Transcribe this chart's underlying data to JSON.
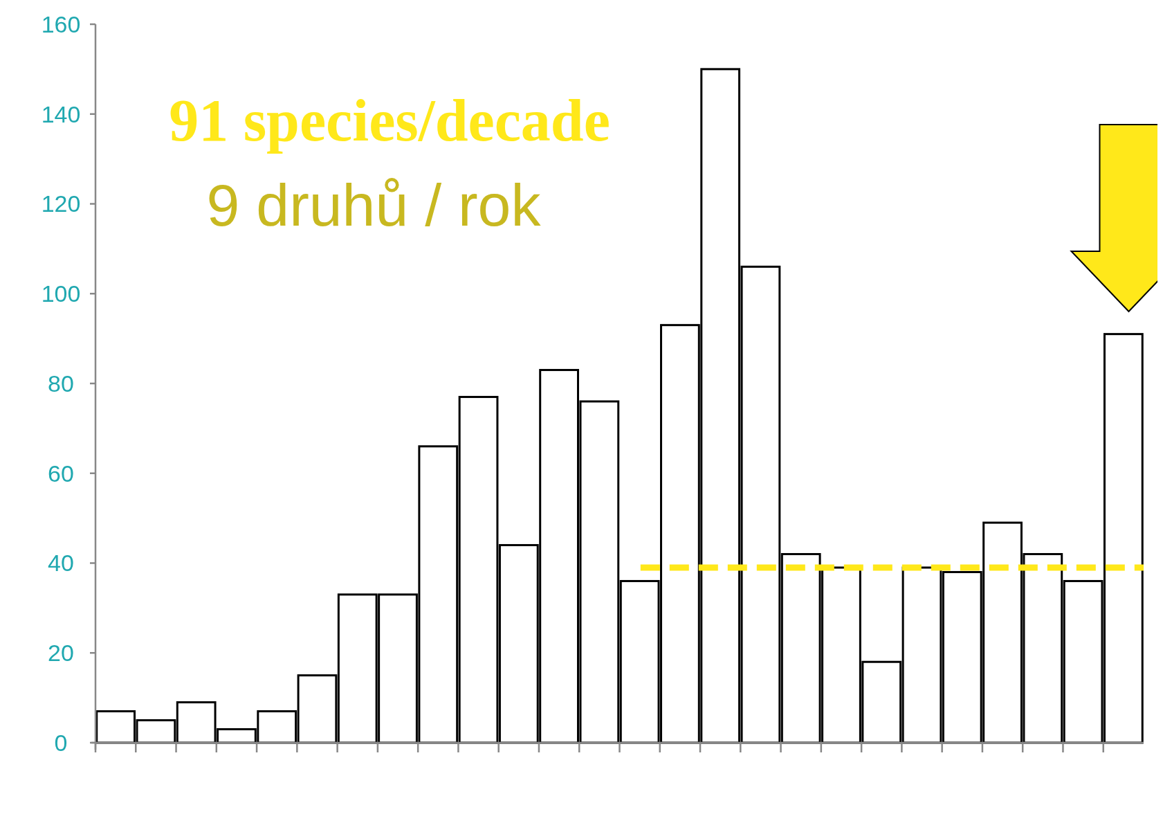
{
  "chart_data": {
    "type": "bar",
    "categories": [
      null,
      null,
      null,
      null,
      null,
      null,
      null,
      null,
      null,
      null,
      null,
      null,
      null,
      null,
      null,
      null,
      null,
      null,
      null,
      null,
      null,
      null,
      null,
      null,
      null,
      null
    ],
    "values": [
      7,
      5,
      9,
      3,
      7,
      15,
      33,
      33,
      66,
      77,
      44,
      83,
      76,
      36,
      93,
      150,
      106,
      42,
      39,
      18,
      39,
      38,
      49,
      42,
      36,
      91
    ],
    "color": "#ffffff",
    "ylim": [
      0,
      160
    ],
    "yticks": [
      0,
      20,
      40,
      60,
      80,
      100,
      120,
      140,
      160
    ],
    "ref_lines": [
      {
        "axis": "y",
        "value": 39,
        "color": "#ffe81a",
        "line_style": "dashed"
      }
    ],
    "annotations": [
      "91 species/decade",
      "9 druhů / rok"
    ],
    "grid": false
  }
}
